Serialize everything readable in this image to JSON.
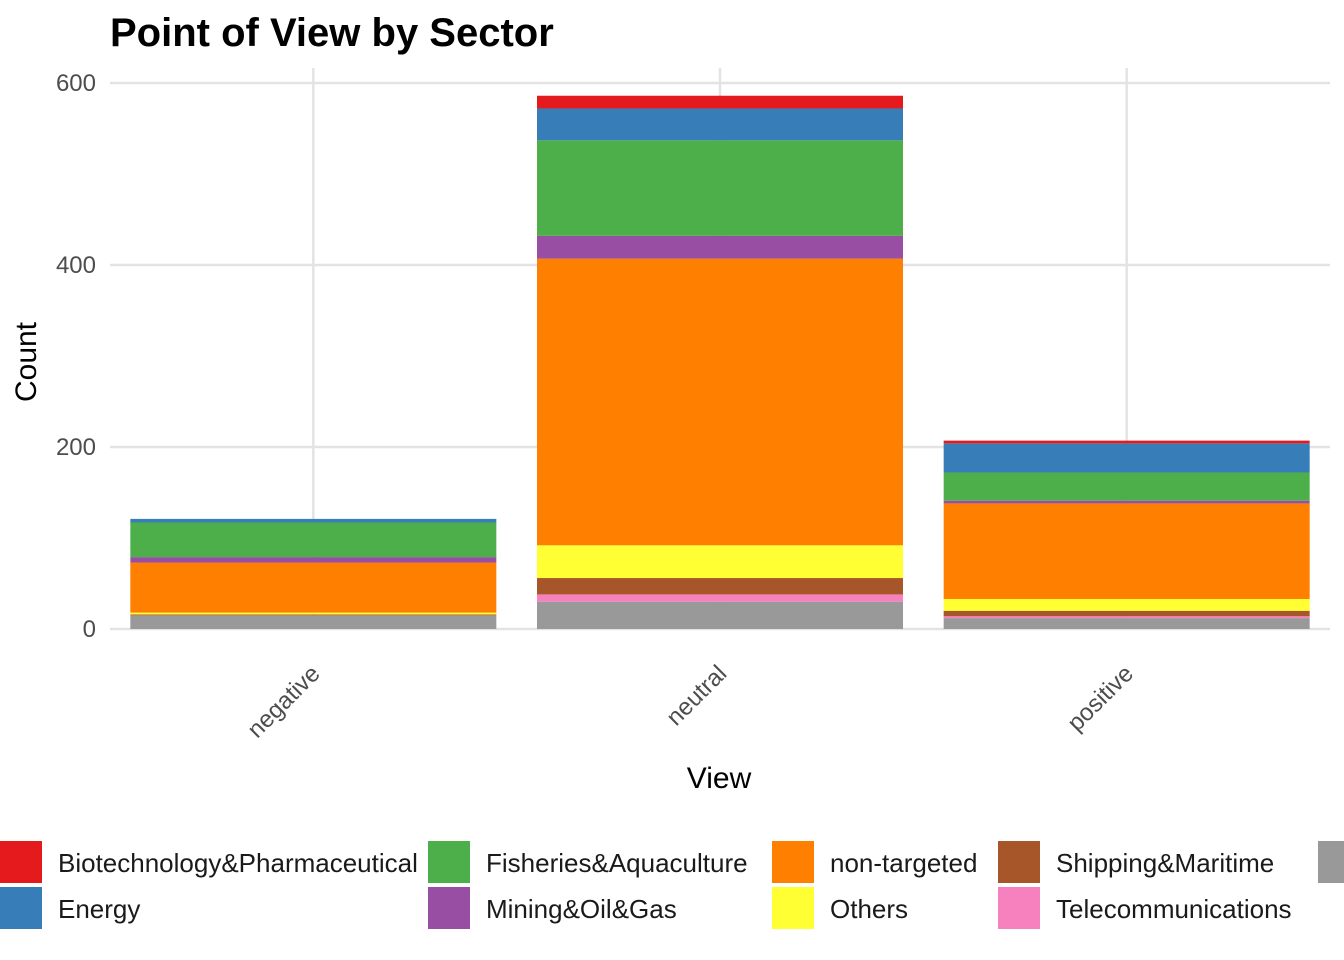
{
  "chart_data": {
    "type": "bar",
    "stacked": true,
    "title": "Point of View by Sector",
    "xlabel": "View",
    "ylabel": "Count",
    "categories": [
      "negative",
      "neutral",
      "positive"
    ],
    "ylim": [
      0,
      615
    ],
    "yticks": [
      0,
      200,
      400,
      600
    ],
    "grid": true,
    "legend_position": "bottom",
    "stack_order_bottom_to_top": [
      "",
      "Telecommunications",
      "Shipping&Maritime",
      "Others",
      "non-targeted",
      "Mining&Oil&Gas",
      "Fisheries&Aquaculture",
      "Energy",
      "Biotechnology&Pharmaceutical"
    ],
    "series": [
      {
        "name": "Biotechnology&Pharmaceutical",
        "color": "#E41A1C",
        "values": [
          0,
          14,
          3
        ]
      },
      {
        "name": "Energy",
        "color": "#377EB8",
        "values": [
          4,
          35,
          32
        ]
      },
      {
        "name": "Fisheries&Aquaculture",
        "color": "#4DAF4A",
        "values": [
          38,
          105,
          31
        ]
      },
      {
        "name": "Mining&Oil&Gas",
        "color": "#984EA3",
        "values": [
          6,
          25,
          3
        ]
      },
      {
        "name": "non-targeted",
        "color": "#FF7F00",
        "values": [
          55,
          315,
          105
        ]
      },
      {
        "name": "Others",
        "color": "#FFFF33",
        "values": [
          2,
          36,
          13
        ]
      },
      {
        "name": "Shipping&Maritime",
        "color": "#A65628",
        "values": [
          1,
          18,
          6
        ]
      },
      {
        "name": "Telecommunications",
        "color": "#F781BF",
        "values": [
          0,
          8,
          2
        ]
      },
      {
        "name": "",
        "color": "#999999",
        "values": [
          15,
          30,
          12
        ]
      }
    ]
  }
}
